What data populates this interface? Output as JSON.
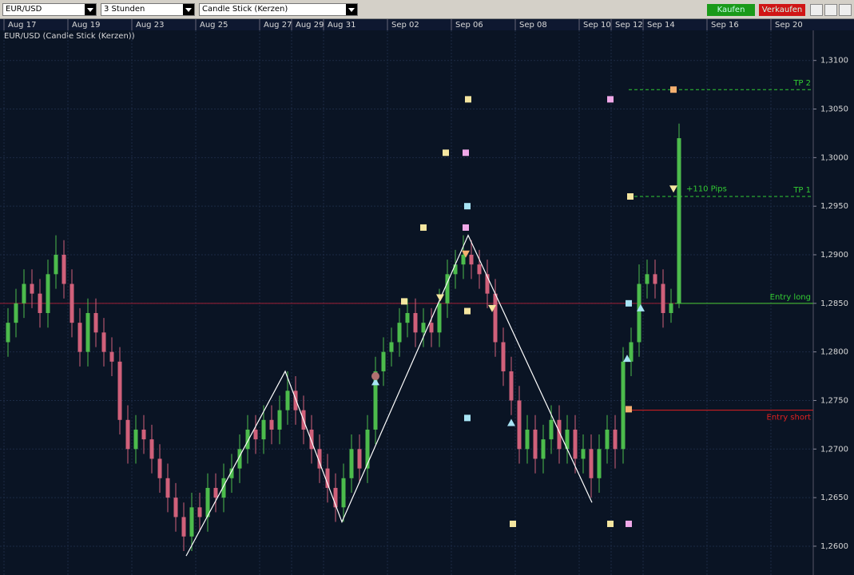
{
  "toolbar": {
    "symbol": "EUR/USD",
    "interval": "3 Stunden",
    "chart_style": "Candle Stick (Kerzen)",
    "buy": "Kaufen",
    "sell": "Verkaufen"
  },
  "chart_data": {
    "type": "candlestick",
    "title": "EUR/USD (Candle Stick (Kerzen))",
    "up_color": "#4cbb4c",
    "down_color": "#d0607a",
    "categories": [
      "Aug 17",
      null,
      null,
      null,
      null,
      null,
      null,
      null,
      "Aug 19",
      null,
      null,
      null,
      null,
      null,
      null,
      null,
      "Aug 23",
      null,
      null,
      null,
      null,
      null,
      null,
      null,
      "Aug 25",
      null,
      null,
      null,
      null,
      null,
      null,
      null,
      "Aug 27",
      null,
      null,
      null,
      "Aug 29",
      null,
      null,
      null,
      "Aug 31",
      null,
      null,
      null,
      null,
      null,
      null,
      null,
      "Sep 02",
      null,
      null,
      null,
      null,
      null,
      null,
      null,
      "Sep 06",
      null,
      null,
      null,
      null,
      null,
      null,
      null,
      "Sep 08",
      null,
      null,
      null,
      null,
      null,
      null,
      null,
      "Sep 10",
      null,
      null,
      null,
      "Sep 12",
      null,
      null,
      null,
      "Sep 14",
      null,
      null,
      null,
      null,
      null,
      null,
      null,
      "Sep 16",
      null,
      null,
      null,
      null,
      null,
      null,
      null,
      "Sep 20"
    ],
    "open": [
      1.281,
      1.283,
      1.285,
      1.287,
      1.286,
      1.284,
      1.288,
      1.29,
      1.287,
      1.283,
      1.28,
      1.284,
      1.282,
      1.28,
      1.279,
      1.273,
      1.27,
      1.272,
      1.271,
      1.269,
      1.267,
      1.265,
      1.263,
      1.261,
      1.264,
      1.263,
      1.266,
      1.265,
      1.267,
      1.268,
      1.27,
      1.272,
      1.271,
      1.273,
      1.272,
      1.274,
      1.276,
      1.274,
      1.272,
      1.27,
      1.268,
      1.266,
      1.264,
      1.267,
      1.27,
      1.268,
      1.272,
      1.278,
      1.28,
      1.281,
      1.283,
      1.284,
      1.282,
      1.283,
      1.282,
      1.285,
      1.288,
      1.289,
      1.29,
      1.289,
      1.288,
      1.286,
      1.281,
      1.278,
      1.275,
      1.27,
      1.272,
      1.269,
      1.271,
      1.273,
      1.27,
      1.272,
      1.269,
      1.27,
      1.267,
      1.27,
      1.272,
      1.27,
      1.279,
      1.281,
      1.287,
      1.288,
      1.287,
      1.284,
      1.285,
      null,
      null,
      null,
      null,
      null,
      null,
      null,
      null,
      null,
      null,
      null,
      null
    ],
    "high": [
      1.2845,
      1.2865,
      1.2885,
      1.2885,
      1.2875,
      1.2895,
      1.292,
      1.2915,
      1.2885,
      1.2845,
      1.2855,
      1.2855,
      1.2835,
      1.2815,
      1.2805,
      1.2745,
      1.2735,
      1.2735,
      1.2725,
      1.2705,
      1.2685,
      1.2665,
      1.2645,
      1.2655,
      1.2655,
      1.2675,
      1.2675,
      1.2685,
      1.2695,
      1.2715,
      1.2735,
      1.2735,
      1.2745,
      1.2745,
      1.2755,
      1.278,
      1.2775,
      1.2755,
      1.2735,
      1.2715,
      1.2695,
      1.2675,
      1.2685,
      1.2715,
      1.2715,
      1.2735,
      1.2795,
      1.2815,
      1.2825,
      1.2845,
      1.2855,
      1.2855,
      1.2845,
      1.2845,
      1.2865,
      1.2895,
      1.2905,
      1.292,
      1.2915,
      1.2905,
      1.2895,
      1.2875,
      1.2825,
      1.2795,
      1.2765,
      1.2735,
      1.2735,
      1.2725,
      1.2745,
      1.2745,
      1.2735,
      1.2735,
      1.2715,
      1.2715,
      1.2715,
      1.2735,
      1.2735,
      1.2805,
      1.2825,
      1.289,
      1.2895,
      1.2895,
      1.2885,
      1.2865,
      1.3035,
      null,
      null,
      null,
      null,
      null,
      null,
      null,
      null,
      null,
      null,
      null,
      null
    ],
    "low": [
      1.2795,
      1.2815,
      1.2835,
      1.2845,
      1.2825,
      1.2825,
      1.2865,
      1.2855,
      1.2815,
      1.2785,
      1.2785,
      1.2805,
      1.2785,
      1.2775,
      1.2715,
      1.2685,
      1.2685,
      1.2695,
      1.2675,
      1.2655,
      1.2635,
      1.2615,
      1.2595,
      1.2595,
      1.2615,
      1.2615,
      1.2635,
      1.2635,
      1.2655,
      1.2665,
      1.2685,
      1.2695,
      1.2695,
      1.2705,
      1.2705,
      1.2725,
      1.2725,
      1.2705,
      1.2685,
      1.2665,
      1.2645,
      1.2625,
      1.2625,
      1.2655,
      1.2665,
      1.2665,
      1.2705,
      1.2765,
      1.2785,
      1.2795,
      1.2815,
      1.2805,
      1.2805,
      1.2805,
      1.2805,
      1.2835,
      1.2865,
      1.2875,
      1.2875,
      1.2865,
      1.2845,
      1.2795,
      1.2765,
      1.2735,
      1.2685,
      1.2685,
      1.2675,
      1.2675,
      1.2695,
      1.2685,
      1.2685,
      1.2675,
      1.2675,
      1.265,
      1.2655,
      1.2685,
      1.268,
      1.2685,
      1.2775,
      1.2795,
      1.2855,
      1.2855,
      1.2825,
      1.283,
      1.2845,
      null,
      null,
      null,
      null,
      null,
      null,
      null,
      null,
      null,
      null,
      null,
      null
    ],
    "close": [
      1.283,
      1.285,
      1.287,
      1.286,
      1.284,
      1.288,
      1.29,
      1.287,
      1.283,
      1.28,
      1.284,
      1.282,
      1.28,
      1.279,
      1.273,
      1.27,
      1.272,
      1.271,
      1.269,
      1.267,
      1.265,
      1.263,
      1.261,
      1.264,
      1.263,
      1.266,
      1.265,
      1.267,
      1.268,
      1.27,
      1.272,
      1.271,
      1.273,
      1.272,
      1.274,
      1.276,
      1.274,
      1.272,
      1.27,
      1.268,
      1.266,
      1.264,
      1.267,
      1.27,
      1.268,
      1.272,
      1.278,
      1.28,
      1.281,
      1.283,
      1.284,
      1.282,
      1.283,
      1.282,
      1.285,
      1.288,
      1.289,
      1.29,
      1.289,
      1.288,
      1.286,
      1.281,
      1.278,
      1.275,
      1.27,
      1.272,
      1.269,
      1.271,
      1.273,
      1.27,
      1.272,
      1.269,
      1.27,
      1.267,
      1.27,
      1.272,
      1.27,
      1.279,
      1.281,
      1.287,
      1.288,
      1.287,
      1.284,
      1.285,
      1.302,
      null,
      null,
      null,
      null,
      null,
      null,
      null,
      null,
      null,
      null,
      null,
      null
    ],
    "ylim": [
      1.2572,
      1.3131
    ],
    "yticks": [
      {
        "value": 1.26,
        "label": "1,2600"
      },
      {
        "value": 1.265,
        "label": "1,2650"
      },
      {
        "value": 1.27,
        "label": "1,2700"
      },
      {
        "value": 1.275,
        "label": "1,2750"
      },
      {
        "value": 1.28,
        "label": "1,2800"
      },
      {
        "value": 1.285,
        "label": "1,2850"
      },
      {
        "value": 1.29,
        "label": "1,2900"
      },
      {
        "value": 1.295,
        "label": "1,2950"
      },
      {
        "value": 1.3,
        "label": "1,3000"
      },
      {
        "value": 1.305,
        "label": "1,3050"
      },
      {
        "value": 1.31,
        "label": "1,3100"
      }
    ],
    "grid": true,
    "zigzag": {
      "color": "#ffffff",
      "x": [
        22.3,
        34.7,
        41.8,
        57.6,
        73.1
      ],
      "values": [
        1.259,
        1.278,
        1.2625,
        1.292,
        1.2645
      ]
    },
    "levels": [
      {
        "label": "TP 2",
        "value": 1.307,
        "color": "#33cc33",
        "dashed": true,
        "start": 77.7
      },
      {
        "label": "TP 1",
        "value": 1.296,
        "color": "#33cc33",
        "dashed": true,
        "start": 77.7
      },
      {
        "label": "Entry long",
        "value": 1.285,
        "color": "#33cc33",
        "dashed": false,
        "start": 83.5,
        "full_color": "#a02035"
      },
      {
        "label": "Entry short",
        "value": 1.274,
        "color": "#e02020",
        "dashed": false,
        "start": 77.7
      }
    ],
    "annotations": [
      {
        "text": "+110 Pips",
        "x": 84.1,
        "value": 1.2968,
        "color": "#33cc33"
      }
    ],
    "markers": [
      {
        "shape": "square",
        "color": "#f5e6a0",
        "x": 57.6,
        "value": 1.306
      },
      {
        "shape": "square",
        "color": "#f0a8e8",
        "x": 75.4,
        "value": 1.306
      },
      {
        "shape": "square",
        "color": "#f5b070",
        "x": 83.3,
        "value": 1.307
      },
      {
        "shape": "square",
        "color": "#f5e6a0",
        "x": 54.8,
        "value": 1.3005
      },
      {
        "shape": "square",
        "color": "#f0a8e8",
        "x": 57.3,
        "value": 1.3005
      },
      {
        "shape": "square",
        "color": "#f5e6a0",
        "x": 77.9,
        "value": 1.296
      },
      {
        "shape": "square",
        "color": "#a8e4f5",
        "x": 57.5,
        "value": 1.295
      },
      {
        "shape": "square",
        "color": "#f5e6a0",
        "x": 52,
        "value": 1.2928
      },
      {
        "shape": "square",
        "color": "#f0a8e8",
        "x": 57.3,
        "value": 1.2928
      },
      {
        "shape": "square",
        "color": "#f5e6a0",
        "x": 49.6,
        "value": 1.2852
      },
      {
        "shape": "square",
        "color": "#a8e4f5",
        "x": 77.7,
        "value": 1.285
      },
      {
        "shape": "square",
        "color": "#f5e6a0",
        "x": 57.5,
        "value": 1.2842
      },
      {
        "shape": "square",
        "color": "#f5b070",
        "x": 77.7,
        "value": 1.2741
      },
      {
        "shape": "square",
        "color": "#a8e4f5",
        "x": 57.5,
        "value": 1.2732
      },
      {
        "shape": "square",
        "color": "#f5e6a0",
        "x": 63.2,
        "value": 1.2623
      },
      {
        "shape": "square",
        "color": "#f5e6a0",
        "x": 75.4,
        "value": 1.2623
      },
      {
        "shape": "square",
        "color": "#f0a8e8",
        "x": 77.7,
        "value": 1.2623
      },
      {
        "shape": "up",
        "color": "#a8e4f5",
        "x": 46,
        "value": 1.2769
      },
      {
        "shape": "up",
        "color": "#a8e4f5",
        "x": 63,
        "value": 1.2727
      },
      {
        "shape": "up",
        "color": "#a8e4f5",
        "x": 77.5,
        "value": 1.2793
      },
      {
        "shape": "up",
        "color": "#a8e4f5",
        "x": 79.2,
        "value": 1.2845
      },
      {
        "shape": "down",
        "color": "#f5e6a0",
        "x": 54.1,
        "value": 1.2856
      },
      {
        "shape": "down",
        "color": "#f5e6a0",
        "x": 60.6,
        "value": 1.2845
      },
      {
        "shape": "down",
        "color": "#f5e6a0",
        "x": 83.3,
        "value": 1.2968
      },
      {
        "shape": "down",
        "color": "#f5b070",
        "x": 57.3,
        "value": 1.2901
      },
      {
        "shape": "circle",
        "color": "#b07070",
        "x": 46,
        "value": 1.2775
      }
    ]
  }
}
